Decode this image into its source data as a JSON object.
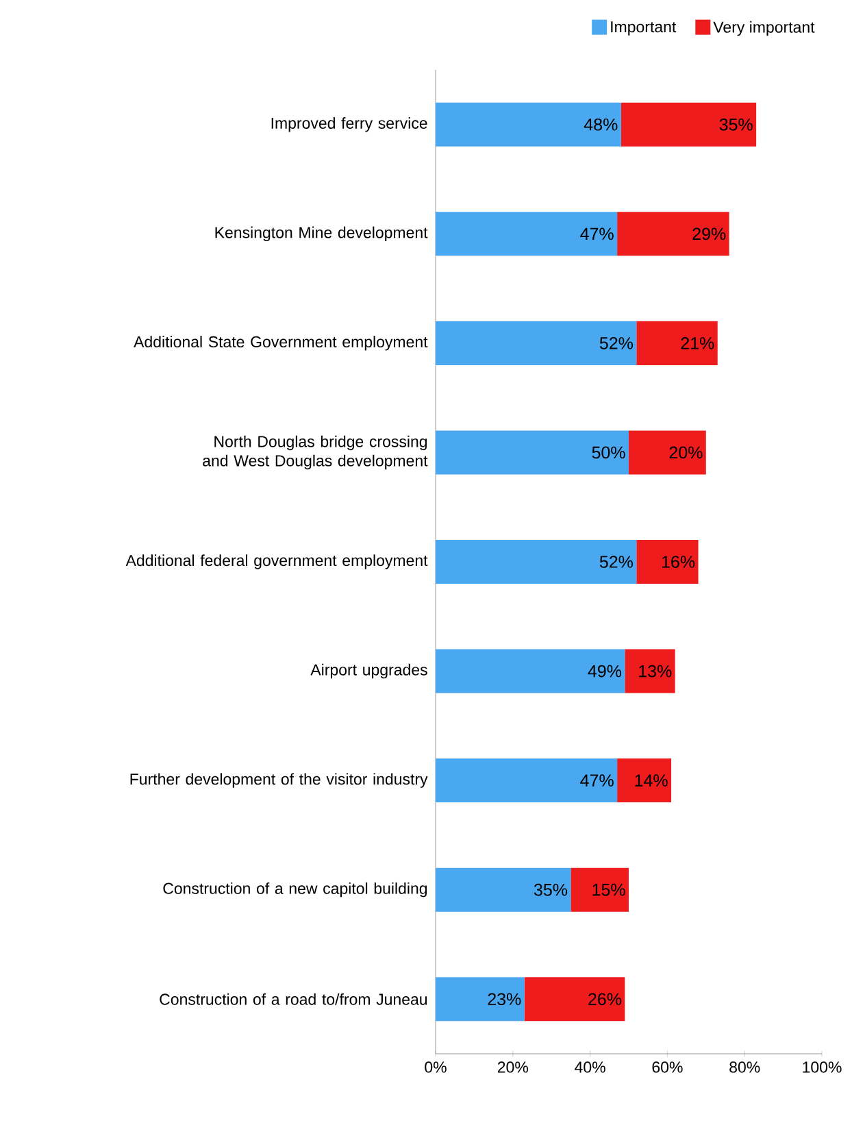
{
  "chart_data": {
    "type": "bar",
    "orientation": "horizontal",
    "stacked": true,
    "categories": [
      "Improved ferry service",
      "Kensington Mine development",
      "Additional State Government employment",
      "North Douglas bridge crossing and West Douglas development",
      "Additional federal government employment",
      "Airport upgrades",
      "Further development of the visitor industry",
      "Construction of a new capitol building",
      "Construction of a road to/from Juneau"
    ],
    "series": [
      {
        "name": "Important",
        "color": "#4aa8f0",
        "values": [
          48,
          47,
          52,
          50,
          52,
          49,
          47,
          35,
          23
        ],
        "value_labels": [
          "48%",
          "47%",
          "52%",
          "50%",
          "52%",
          "49%",
          "47%",
          "35%",
          "23%"
        ]
      },
      {
        "name": "Very important",
        "color": "#ee1c1c",
        "values": [
          35,
          29,
          21,
          20,
          16,
          13,
          14,
          15,
          26
        ],
        "value_labels": [
          "35%",
          "29%",
          "21%",
          "20%",
          "16%",
          "13%",
          "14%",
          "15%",
          "26%"
        ]
      }
    ],
    "xlim": [
      0,
      100
    ],
    "xticks": [
      {
        "value": 0,
        "label": "0%"
      },
      {
        "value": 20,
        "label": "20%"
      },
      {
        "value": 40,
        "label": "40%"
      },
      {
        "value": 60,
        "label": "60%"
      },
      {
        "value": 80,
        "label": "80%"
      },
      {
        "value": 100,
        "label": "100%"
      }
    ],
    "legend": "top right"
  }
}
